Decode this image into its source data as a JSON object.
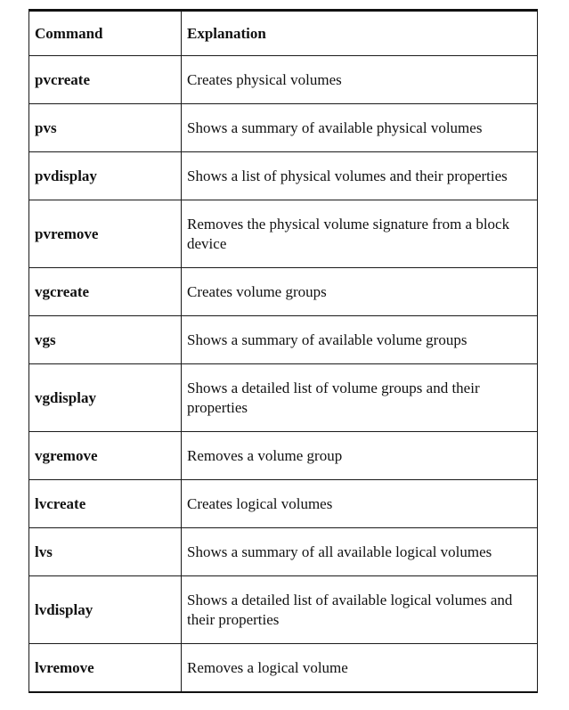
{
  "table": {
    "headers": {
      "command": "Command",
      "explanation": "Explanation"
    },
    "rows": [
      {
        "command": "pvcreate",
        "explanation": "Creates physical volumes"
      },
      {
        "command": "pvs",
        "explanation": "Shows a summary of available physical volumes"
      },
      {
        "command": "pvdisplay",
        "explanation": "Shows a list of physical volumes and their properties"
      },
      {
        "command": "pvremove",
        "explanation": "Removes the physical volume signature from a block device"
      },
      {
        "command": "vgcreate",
        "explanation": "Creates volume groups"
      },
      {
        "command": "vgs",
        "explanation": "Shows a summary of available volume groups"
      },
      {
        "command": "vgdisplay",
        "explanation": "Shows a detailed list of volume groups and their properties"
      },
      {
        "command": "vgremove",
        "explanation": "Removes a volume group"
      },
      {
        "command": "lvcreate",
        "explanation": "Creates logical volumes"
      },
      {
        "command": "lvs",
        "explanation": "Shows a summary of all available logical volumes"
      },
      {
        "command": "lvdisplay",
        "explanation": "Shows a detailed list of available logical volumes and their properties"
      },
      {
        "command": "lvremove",
        "explanation": "Removes a logical volume"
      }
    ]
  }
}
